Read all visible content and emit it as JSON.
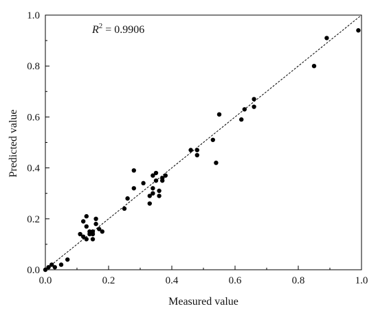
{
  "chart_data": {
    "type": "scatter",
    "xlabel": "Measured value",
    "ylabel": "Predicted value",
    "xlim": [
      0,
      1.0
    ],
    "ylim": [
      0,
      1.0
    ],
    "x_ticks": [
      "0.0",
      "0.2",
      "0.4",
      "0.6",
      "0.8",
      "1.0"
    ],
    "y_ticks": [
      "0.0",
      "0.2",
      "0.4",
      "0.6",
      "0.8",
      "1.0"
    ],
    "grid": false,
    "annotation": {
      "var": "R",
      "sup": "2",
      "text": " = 0.9906"
    },
    "reference_line": {
      "from": [
        0,
        0
      ],
      "to": [
        1,
        1
      ],
      "style": "dashed"
    },
    "points": [
      [
        0.0,
        0.0
      ],
      [
        0.01,
        0.01
      ],
      [
        0.02,
        0.02
      ],
      [
        0.03,
        0.01
      ],
      [
        0.05,
        0.02
      ],
      [
        0.07,
        0.04
      ],
      [
        0.11,
        0.14
      ],
      [
        0.12,
        0.19
      ],
      [
        0.12,
        0.13
      ],
      [
        0.13,
        0.21
      ],
      [
        0.13,
        0.12
      ],
      [
        0.13,
        0.17
      ],
      [
        0.14,
        0.14
      ],
      [
        0.14,
        0.15
      ],
      [
        0.15,
        0.14
      ],
      [
        0.15,
        0.12
      ],
      [
        0.15,
        0.15
      ],
      [
        0.16,
        0.2
      ],
      [
        0.16,
        0.18
      ],
      [
        0.17,
        0.16
      ],
      [
        0.18,
        0.15
      ],
      [
        0.25,
        0.24
      ],
      [
        0.26,
        0.28
      ],
      [
        0.28,
        0.39
      ],
      [
        0.28,
        0.32
      ],
      [
        0.31,
        0.34
      ],
      [
        0.33,
        0.26
      ],
      [
        0.33,
        0.29
      ],
      [
        0.34,
        0.3
      ],
      [
        0.34,
        0.32
      ],
      [
        0.34,
        0.37
      ],
      [
        0.35,
        0.35
      ],
      [
        0.35,
        0.38
      ],
      [
        0.36,
        0.29
      ],
      [
        0.36,
        0.31
      ],
      [
        0.37,
        0.35
      ],
      [
        0.37,
        0.36
      ],
      [
        0.38,
        0.37
      ],
      [
        0.46,
        0.47
      ],
      [
        0.48,
        0.47
      ],
      [
        0.48,
        0.45
      ],
      [
        0.53,
        0.51
      ],
      [
        0.54,
        0.42
      ],
      [
        0.55,
        0.61
      ],
      [
        0.62,
        0.59
      ],
      [
        0.63,
        0.63
      ],
      [
        0.66,
        0.67
      ],
      [
        0.66,
        0.64
      ],
      [
        0.85,
        0.8
      ],
      [
        0.89,
        0.91
      ],
      [
        0.99,
        0.94
      ]
    ],
    "colors": {
      "point": "#000000",
      "axis": "#000000",
      "ref_line": "#000000"
    }
  }
}
